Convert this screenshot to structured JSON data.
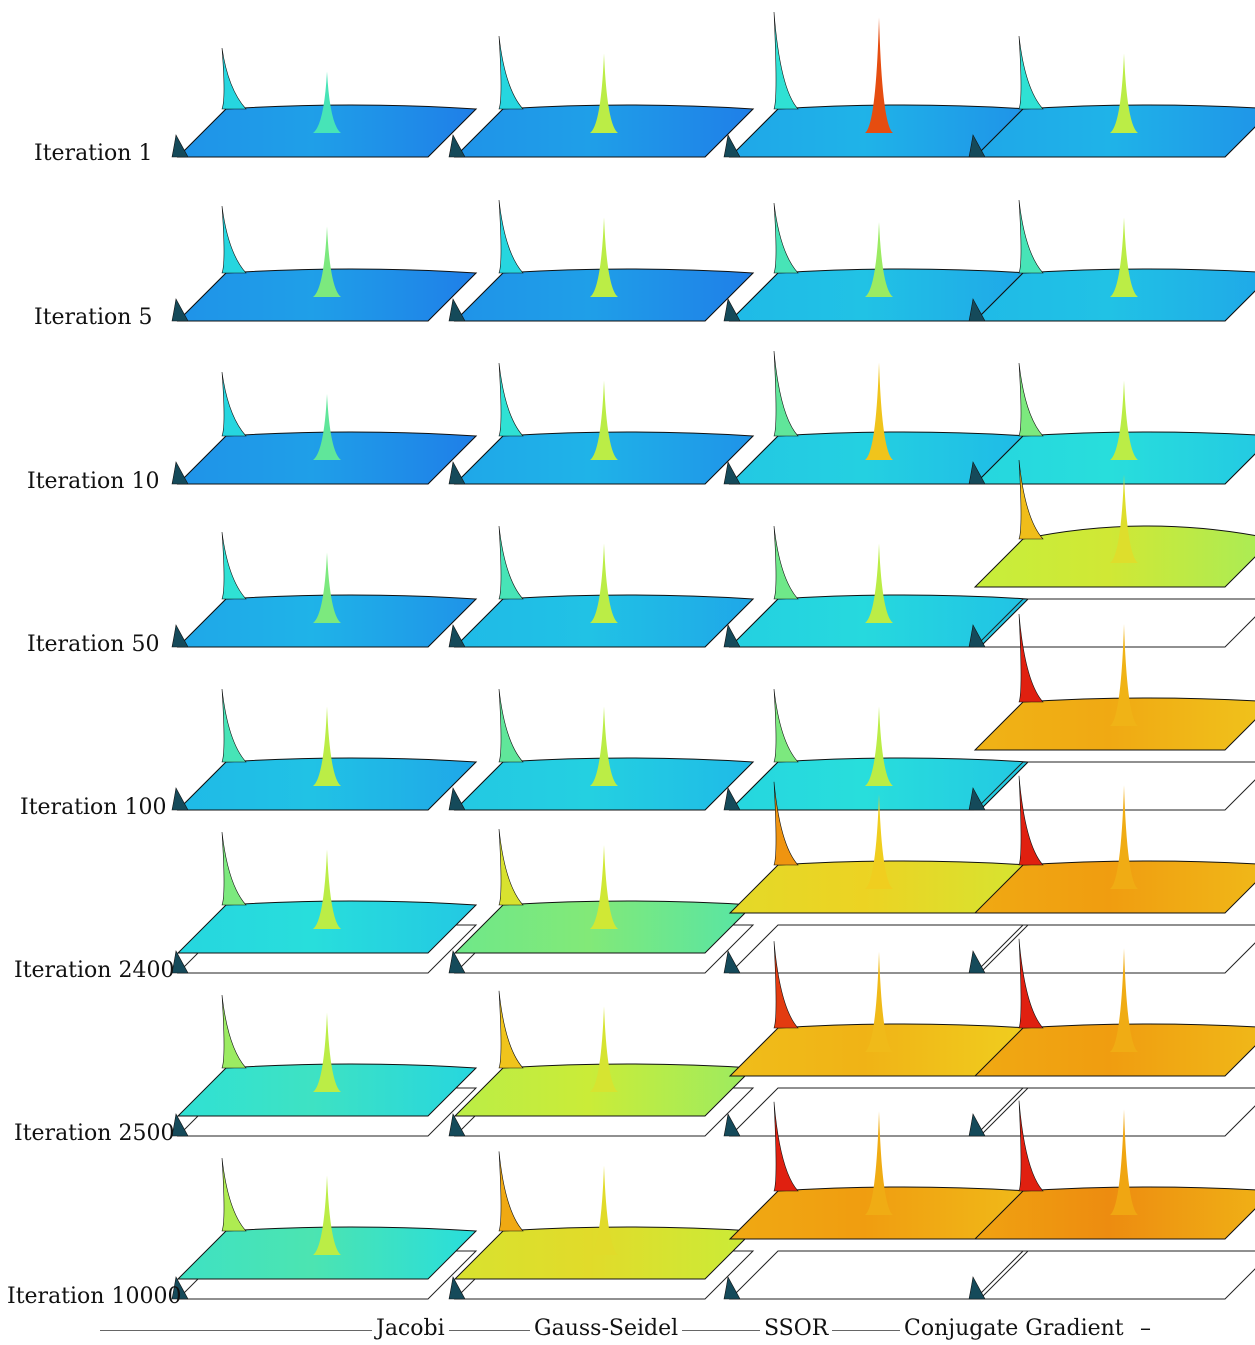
{
  "rows": [
    {
      "label": "Iteration 1"
    },
    {
      "label": "Iteration 5"
    },
    {
      "label": "Iteration 10"
    },
    {
      "label": "Iteration 50"
    },
    {
      "label": "Iteration 100"
    },
    {
      "label": "Iteration 2400"
    },
    {
      "label": "Iteration 2500"
    },
    {
      "label": "Iteration 10000"
    }
  ],
  "methods": [
    {
      "label": "Jacobi"
    },
    {
      "label": "Gauss-Seidel"
    },
    {
      "label": "SSOR"
    },
    {
      "label": "Conjugate Gradient"
    }
  ],
  "trailing_mark": "–",
  "colormap": [
    "#1f7fe8",
    "#1fb8e8",
    "#28e0dc",
    "#6ee88a",
    "#c8ee3a",
    "#f0d020",
    "#f0a010",
    "#e02010"
  ],
  "panels": [
    [
      {
        "state": "flat",
        "level": 0.0,
        "peak": 0.35
      },
      {
        "state": "flat",
        "level": 0.0,
        "peak": 0.45
      },
      {
        "state": "flat",
        "level": 0.0,
        "peak": 0.4
      },
      {
        "state": "flat",
        "level": 0.05,
        "peak": 0.45
      },
      {
        "state": "flat",
        "level": 0.1,
        "peak": 0.55
      },
      {
        "state": "curved",
        "level": 0.2,
        "peak": 0.55
      },
      {
        "state": "curved",
        "level": 0.25,
        "peak": 0.55
      },
      {
        "state": "curved",
        "level": 0.28,
        "peak": 0.55
      }
    ],
    [
      {
        "state": "flat",
        "level": 0.0,
        "peak": 0.55
      },
      {
        "state": "flat",
        "level": 0.0,
        "peak": 0.55
      },
      {
        "state": "flat",
        "level": 0.05,
        "peak": 0.55
      },
      {
        "state": "flat",
        "level": 0.1,
        "peak": 0.55
      },
      {
        "state": "flat",
        "level": 0.15,
        "peak": 0.55
      },
      {
        "state": "curved",
        "level": 0.38,
        "peak": 0.6
      },
      {
        "state": "curved",
        "level": 0.5,
        "peak": 0.62
      },
      {
        "state": "curved",
        "level": 0.58,
        "peak": 0.66
      }
    ],
    [
      {
        "state": "flat",
        "level": 0.05,
        "peak": 0.95
      },
      {
        "state": "flat",
        "level": 0.1,
        "peak": 0.5
      },
      {
        "state": "flat",
        "level": 0.15,
        "peak": 0.75
      },
      {
        "state": "flat",
        "level": 0.18,
        "peak": 0.55
      },
      {
        "state": "flat",
        "level": 0.2,
        "peak": 0.55
      },
      {
        "state": "lifted",
        "level": 0.62,
        "peak": 0.72
      },
      {
        "state": "lifted",
        "level": 0.72,
        "peak": 0.78
      },
      {
        "state": "lifted",
        "level": 0.78,
        "peak": 0.82
      }
    ],
    [
      {
        "state": "flat",
        "level": 0.05,
        "peak": 0.55
      },
      {
        "state": "flat",
        "level": 0.1,
        "peak": 0.55
      },
      {
        "state": "flat",
        "level": 0.2,
        "peak": 0.55
      },
      {
        "state": "wavy",
        "level": 0.52,
        "peak": 0.65
      },
      {
        "state": "lifted",
        "level": 0.75,
        "peak": 0.8
      },
      {
        "state": "lifted",
        "level": 0.78,
        "peak": 0.82
      },
      {
        "state": "lifted",
        "level": 0.78,
        "peak": 0.82
      },
      {
        "state": "lifted",
        "level": 0.8,
        "peak": 0.84
      }
    ]
  ]
}
